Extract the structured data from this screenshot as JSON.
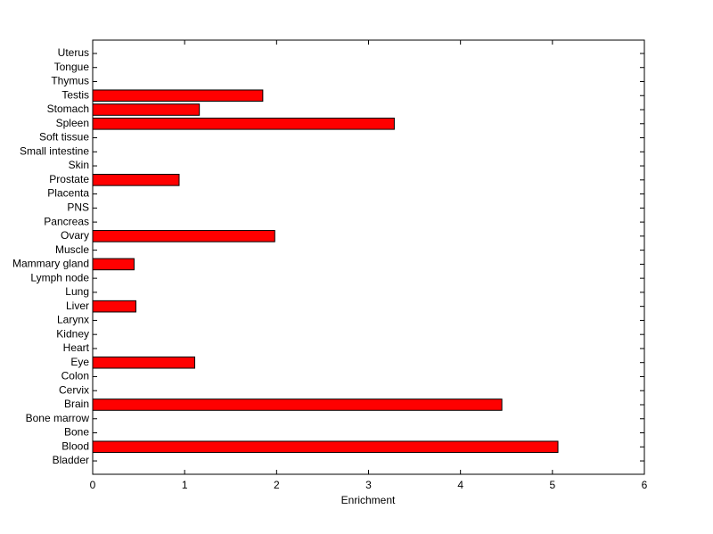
{
  "chart_data": {
    "type": "barh",
    "xlabel": "Enrichment",
    "categories": [
      "Bladder",
      "Blood",
      "Bone",
      "Bone marrow",
      "Brain",
      "Cervix",
      "Colon",
      "Eye",
      "Heart",
      "Kidney",
      "Larynx",
      "Liver",
      "Lung",
      "Lymph node",
      "Mammary gland",
      "Muscle",
      "Ovary",
      "Pancreas",
      "PNS",
      "Placenta",
      "Prostate",
      "Skin",
      "Small intestine",
      "Soft tissue",
      "Spleen",
      "Stomach",
      "Testis",
      "Thymus",
      "Tongue",
      "Uterus"
    ],
    "values": [
      0,
      5.06,
      0,
      0,
      4.45,
      0,
      0,
      1.11,
      0,
      0,
      0,
      0.47,
      0,
      0,
      0.45,
      0,
      1.98,
      0,
      0,
      0,
      0.94,
      0,
      0,
      0,
      3.28,
      1.16,
      1.85,
      0,
      0,
      0
    ],
    "color": "#ff0000",
    "xlim": [
      0,
      6
    ],
    "xticks": [
      0,
      1,
      2,
      3,
      4,
      5,
      6
    ]
  }
}
